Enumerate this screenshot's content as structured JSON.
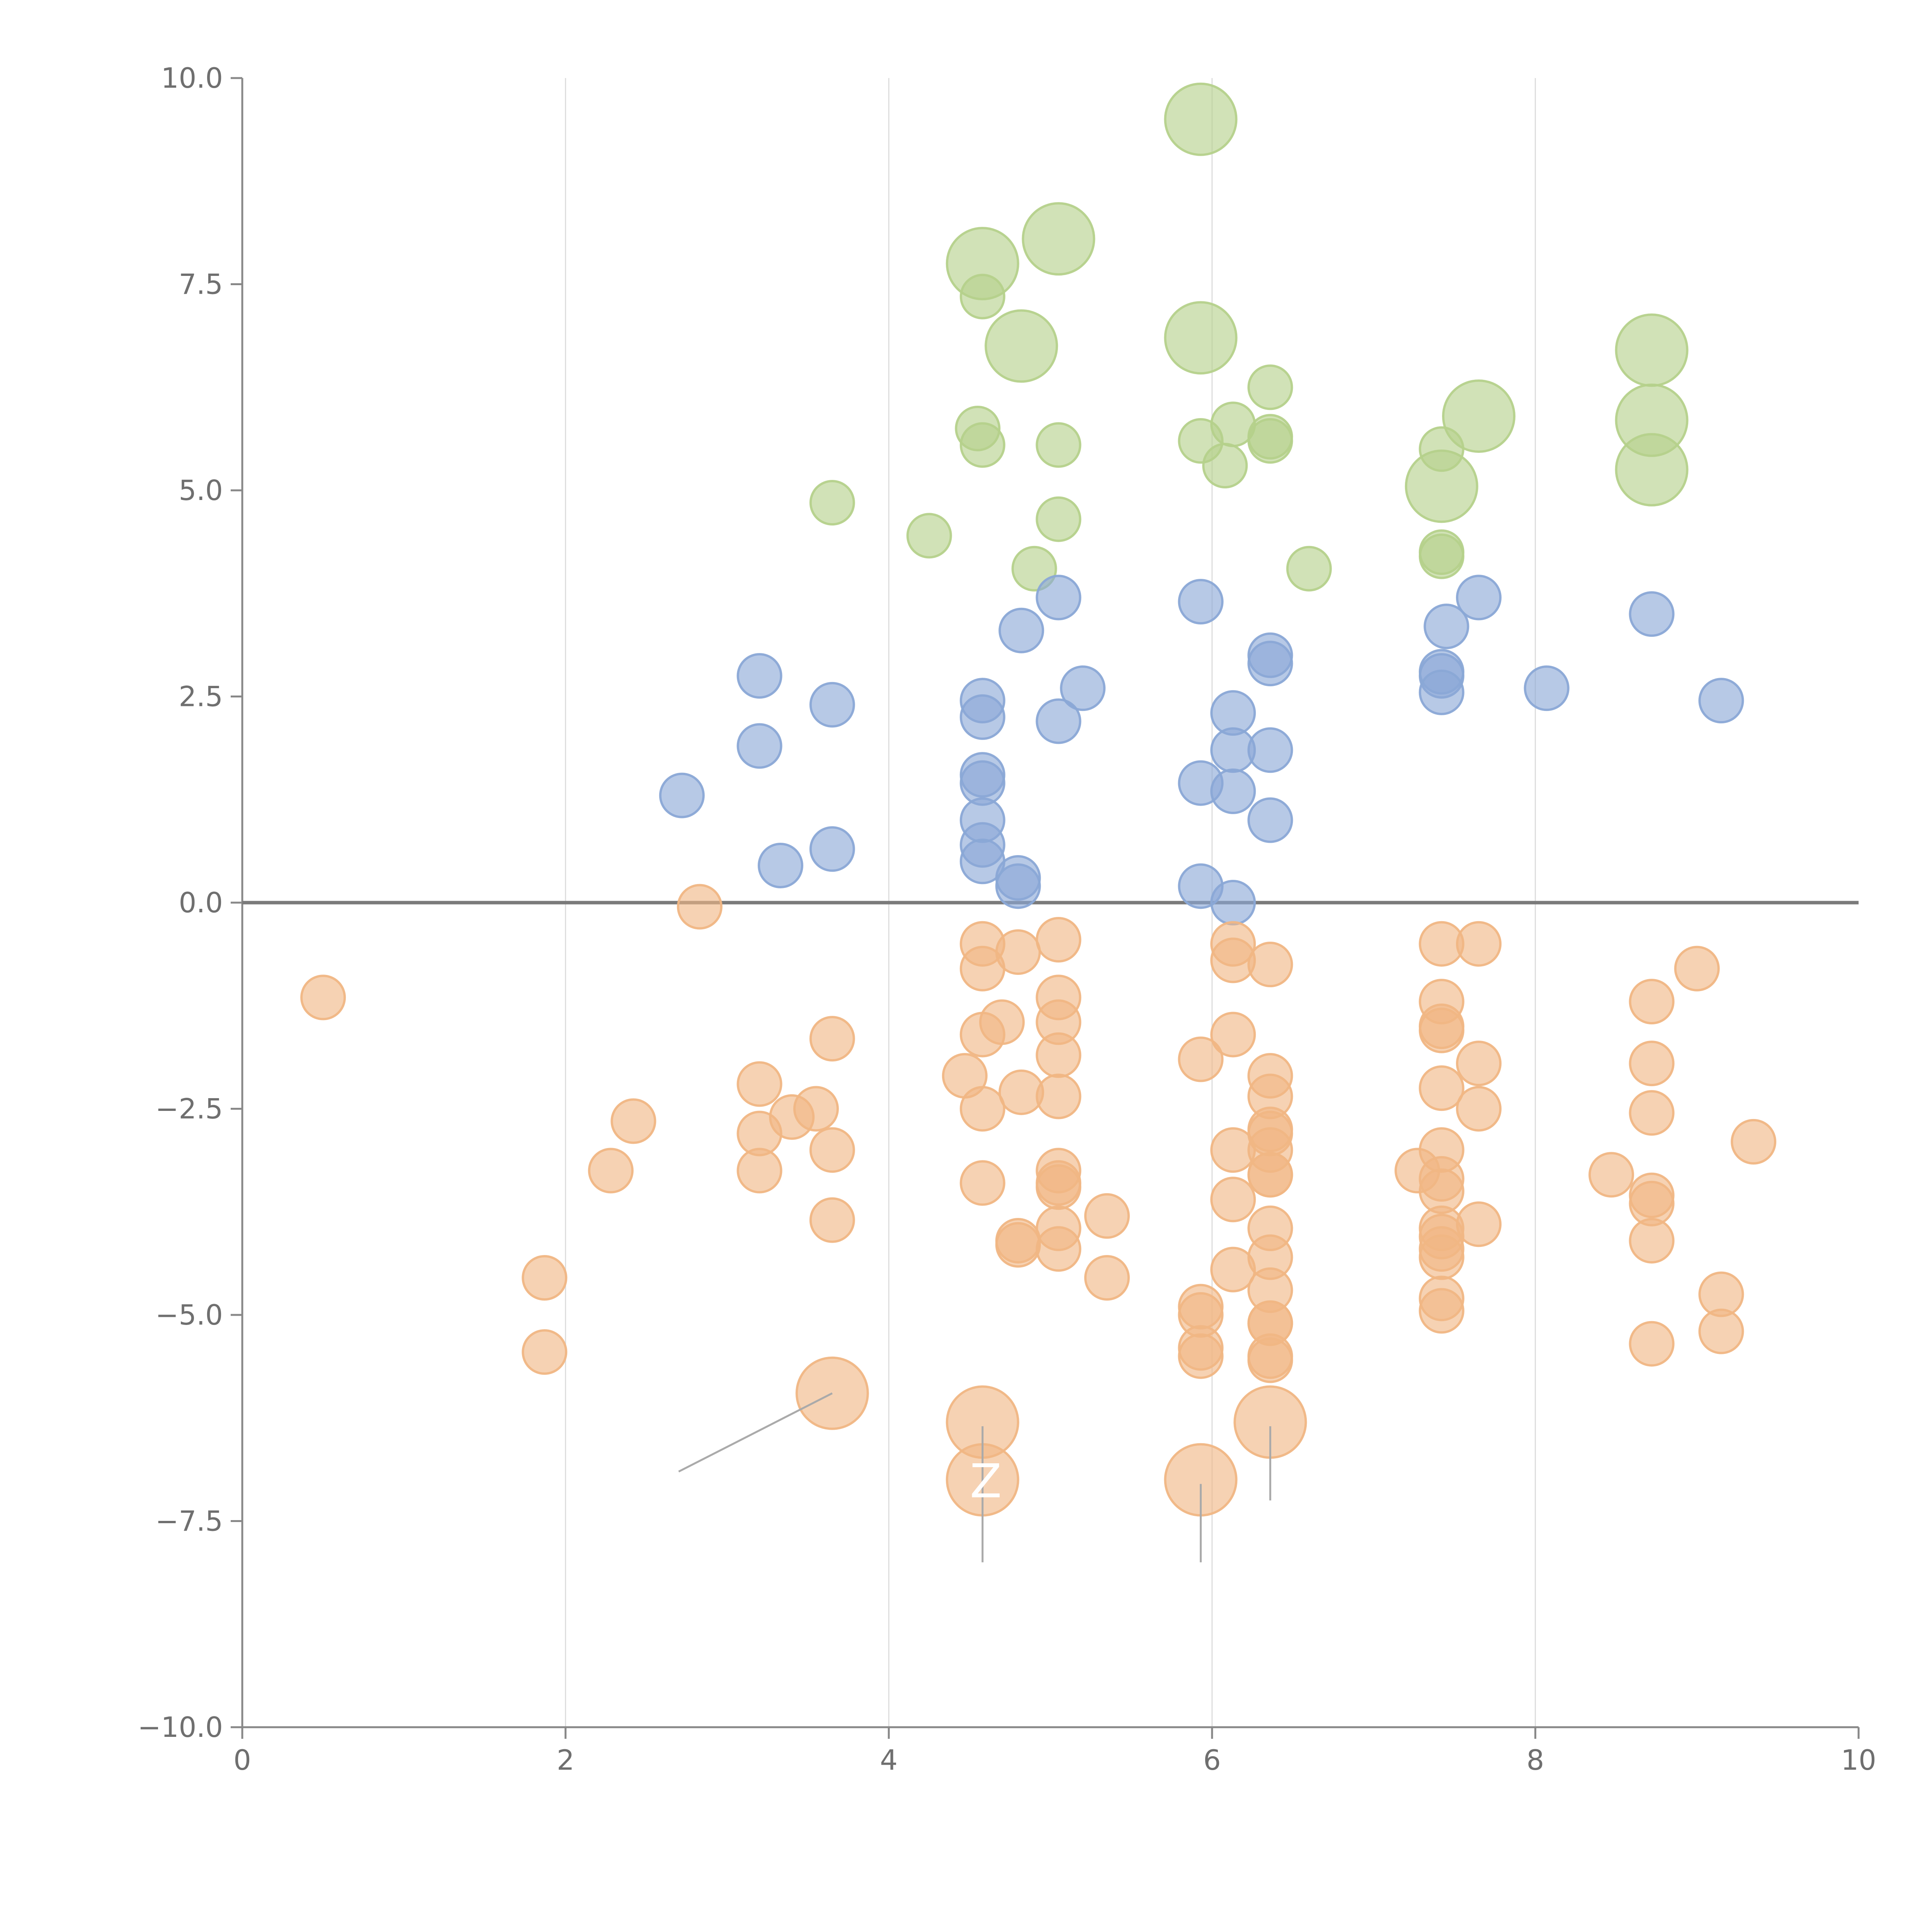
{
  "chart_data": {
    "type": "scatter",
    "title": "",
    "xlabel": "",
    "ylabel": "",
    "xlim": [
      0,
      10
    ],
    "ylim": [
      -10,
      10
    ],
    "x_ticks": [
      0,
      2,
      4,
      6,
      8,
      10
    ],
    "x_tick_labels": [
      "0",
      "2",
      "4",
      "6",
      "8",
      "10"
    ],
    "y_ticks": [
      10,
      7.5,
      5,
      2.5,
      0,
      -2.5,
      -5,
      -7.5,
      -10
    ],
    "y_tick_labels": [
      "10.0",
      "7.5",
      "5.0",
      "2.5",
      "0.0",
      "−2.5",
      "−5.0",
      "−7.5",
      "−10.0"
    ],
    "grid": "vertical lines at x ticks",
    "zero_line": true,
    "legend": "none",
    "colors": {
      "green": "#b5d18b",
      "blue": "#8aa8d6",
      "orange": "#f0b684",
      "axis": "#888888",
      "grid": "#dddddd"
    },
    "annotations": [
      {
        "text": "Z",
        "x": 4.6,
        "y": -7.0
      }
    ],
    "leader_lines": [
      {
        "from": [
          2.7,
          -6.9
        ],
        "to": [
          3.65,
          -5.95
        ]
      },
      {
        "from": [
          4.58,
          -8.0
        ],
        "to": [
          4.58,
          -6.35
        ]
      },
      {
        "from": [
          5.93,
          -8.0
        ],
        "to": [
          5.93,
          -7.05
        ]
      },
      {
        "from": [
          6.36,
          -7.25
        ],
        "to": [
          6.36,
          -6.35
        ]
      }
    ],
    "series": [
      {
        "color": "green",
        "points": [
          [
            5.93,
            9.5,
            2
          ],
          [
            4.58,
            7.75,
            2
          ],
          [
            5.05,
            8.05,
            2
          ],
          [
            4.58,
            7.35,
            1
          ],
          [
            4.82,
            6.75,
            2
          ],
          [
            5.93,
            6.85,
            2
          ],
          [
            8.72,
            6.7,
            2
          ],
          [
            7.65,
            5.9,
            2
          ],
          [
            8.72,
            5.85,
            2
          ],
          [
            8.72,
            5.25,
            2
          ],
          [
            7.42,
            5.05,
            2
          ],
          [
            6.36,
            6.25,
            1
          ],
          [
            6.13,
            5.8,
            1
          ],
          [
            4.55,
            5.75,
            1
          ],
          [
            4.58,
            5.55,
            1
          ],
          [
            5.05,
            5.55,
            1
          ],
          [
            5.93,
            5.6,
            1
          ],
          [
            6.36,
            5.65,
            1
          ],
          [
            6.36,
            5.6,
            1
          ],
          [
            6.08,
            5.3,
            1
          ],
          [
            7.42,
            5.5,
            1
          ],
          [
            3.65,
            4.85,
            1
          ],
          [
            4.25,
            4.45,
            1
          ],
          [
            5.05,
            4.65,
            1
          ],
          [
            4.9,
            4.05,
            1
          ],
          [
            6.6,
            4.05,
            1
          ],
          [
            7.42,
            4.25,
            1
          ],
          [
            7.42,
            4.2,
            1
          ]
        ]
      },
      {
        "color": "blue",
        "points": [
          [
            5.05,
            3.7,
            1
          ],
          [
            5.93,
            3.65,
            1
          ],
          [
            7.65,
            3.7,
            1
          ],
          [
            8.72,
            3.5,
            1
          ],
          [
            7.45,
            3.35,
            1
          ],
          [
            4.82,
            3.3,
            1
          ],
          [
            6.36,
            3.0,
            1
          ],
          [
            6.36,
            2.9,
            1
          ],
          [
            3.2,
            2.75,
            1
          ],
          [
            7.42,
            2.8,
            1
          ],
          [
            7.42,
            2.75,
            1
          ],
          [
            5.2,
            2.6,
            1
          ],
          [
            8.07,
            2.6,
            1
          ],
          [
            7.42,
            2.55,
            1
          ],
          [
            3.65,
            2.4,
            1
          ],
          [
            4.58,
            2.45,
            1
          ],
          [
            9.15,
            2.45,
            1
          ],
          [
            6.13,
            2.3,
            1
          ],
          [
            4.58,
            2.25,
            1
          ],
          [
            5.05,
            2.2,
            1
          ],
          [
            3.2,
            1.9,
            1
          ],
          [
            6.13,
            1.85,
            1
          ],
          [
            6.36,
            1.85,
            1
          ],
          [
            4.58,
            1.55,
            1
          ],
          [
            4.58,
            1.45,
            1
          ],
          [
            5.93,
            1.45,
            1
          ],
          [
            6.13,
            1.35,
            1
          ],
          [
            2.72,
            1.3,
            1
          ],
          [
            4.58,
            1.0,
            1
          ],
          [
            6.36,
            1.0,
            1
          ],
          [
            3.65,
            0.65,
            1
          ],
          [
            4.58,
            0.7,
            1
          ],
          [
            4.58,
            0.5,
            1
          ],
          [
            3.33,
            0.45,
            1
          ],
          [
            4.8,
            0.3,
            1
          ],
          [
            4.8,
            0.2,
            1
          ],
          [
            5.93,
            0.2,
            1
          ],
          [
            6.13,
            0.0,
            1
          ]
        ]
      },
      {
        "color": "orange",
        "points": [
          [
            2.83,
            -0.05,
            1
          ],
          [
            0.5,
            -1.15,
            1
          ],
          [
            4.58,
            -0.5,
            1
          ],
          [
            4.58,
            -0.8,
            1
          ],
          [
            4.8,
            -0.6,
            1
          ],
          [
            5.05,
            -0.45,
            1
          ],
          [
            6.13,
            -0.5,
            1
          ],
          [
            6.13,
            -0.7,
            1
          ],
          [
            6.36,
            -0.75,
            1
          ],
          [
            7.42,
            -0.5,
            1
          ],
          [
            7.65,
            -0.5,
            1
          ],
          [
            9.0,
            -0.8,
            1
          ],
          [
            5.05,
            -1.15,
            1
          ],
          [
            8.72,
            -1.2,
            1
          ],
          [
            7.42,
            -1.2,
            1
          ],
          [
            4.7,
            -1.45,
            1
          ],
          [
            5.05,
            -1.45,
            1
          ],
          [
            7.42,
            -1.5,
            1
          ],
          [
            7.42,
            -1.55,
            1
          ],
          [
            3.65,
            -1.65,
            1
          ],
          [
            4.58,
            -1.6,
            1
          ],
          [
            6.13,
            -1.6,
            1
          ],
          [
            5.05,
            -1.85,
            1
          ],
          [
            5.93,
            -1.9,
            1
          ],
          [
            7.65,
            -1.95,
            1
          ],
          [
            8.72,
            -1.95,
            1
          ],
          [
            4.47,
            -2.1,
            1
          ],
          [
            6.36,
            -2.1,
            1
          ],
          [
            3.2,
            -2.2,
            1
          ],
          [
            7.42,
            -2.25,
            1
          ],
          [
            4.82,
            -2.3,
            1
          ],
          [
            5.05,
            -2.35,
            1
          ],
          [
            6.36,
            -2.35,
            1
          ],
          [
            4.58,
            -2.5,
            1
          ],
          [
            3.55,
            -2.5,
            1
          ],
          [
            7.65,
            -2.5,
            1
          ],
          [
            8.72,
            -2.55,
            1
          ],
          [
            2.42,
            -2.65,
            1
          ],
          [
            3.4,
            -2.6,
            1
          ],
          [
            3.2,
            -2.8,
            1
          ],
          [
            6.36,
            -2.75,
            1
          ],
          [
            6.36,
            -2.8,
            1
          ],
          [
            9.35,
            -2.9,
            1
          ],
          [
            3.65,
            -3.0,
            1
          ],
          [
            6.13,
            -3.0,
            1
          ],
          [
            6.36,
            -3.0,
            1
          ],
          [
            7.42,
            -3.0,
            1
          ],
          [
            2.28,
            -3.25,
            1
          ],
          [
            3.2,
            -3.25,
            1
          ],
          [
            5.05,
            -3.25,
            1
          ],
          [
            6.36,
            -3.3,
            1
          ],
          [
            6.36,
            -3.3,
            1
          ],
          [
            7.27,
            -3.25,
            1
          ],
          [
            7.42,
            -3.35,
            1
          ],
          [
            8.47,
            -3.3,
            1
          ],
          [
            4.58,
            -3.4,
            1
          ],
          [
            5.05,
            -3.4,
            1
          ],
          [
            5.05,
            -3.45,
            1
          ],
          [
            7.42,
            -3.5,
            1
          ],
          [
            8.72,
            -3.55,
            1
          ],
          [
            6.13,
            -3.6,
            1
          ],
          [
            8.72,
            -3.65,
            1
          ],
          [
            3.65,
            -3.85,
            1
          ],
          [
            5.35,
            -3.8,
            1
          ],
          [
            7.65,
            -3.9,
            1
          ],
          [
            5.05,
            -3.95,
            1
          ],
          [
            6.36,
            -3.95,
            1
          ],
          [
            7.42,
            -3.95,
            1
          ],
          [
            7.42,
            -4.05,
            1
          ],
          [
            4.8,
            -4.1,
            1
          ],
          [
            4.8,
            -4.15,
            1
          ],
          [
            8.72,
            -4.1,
            1
          ],
          [
            5.05,
            -4.2,
            1
          ],
          [
            7.42,
            -4.2,
            1
          ],
          [
            7.42,
            -4.3,
            1
          ],
          [
            6.36,
            -4.3,
            1
          ],
          [
            6.13,
            -4.45,
            1
          ],
          [
            1.87,
            -4.55,
            1
          ],
          [
            5.35,
            -4.55,
            1
          ],
          [
            6.36,
            -4.7,
            1
          ],
          [
            7.42,
            -4.8,
            1
          ],
          [
            9.15,
            -4.75,
            1
          ],
          [
            5.93,
            -4.9,
            1
          ],
          [
            7.42,
            -4.95,
            1
          ],
          [
            5.93,
            -5.0,
            1
          ],
          [
            6.36,
            -5.1,
            1
          ],
          [
            6.36,
            -5.1,
            1
          ],
          [
            9.15,
            -5.2,
            1
          ],
          [
            8.72,
            -5.35,
            1
          ],
          [
            5.93,
            -5.4,
            1
          ],
          [
            5.93,
            -5.5,
            1
          ],
          [
            1.87,
            -5.45,
            1
          ],
          [
            6.36,
            -5.5,
            1
          ],
          [
            6.36,
            -5.55,
            1
          ],
          [
            3.65,
            -5.95,
            2
          ],
          [
            4.58,
            -6.3,
            2
          ],
          [
            6.36,
            -6.3,
            2
          ],
          [
            4.58,
            -7.0,
            2
          ],
          [
            5.93,
            -7.0,
            2
          ]
        ]
      }
    ]
  }
}
